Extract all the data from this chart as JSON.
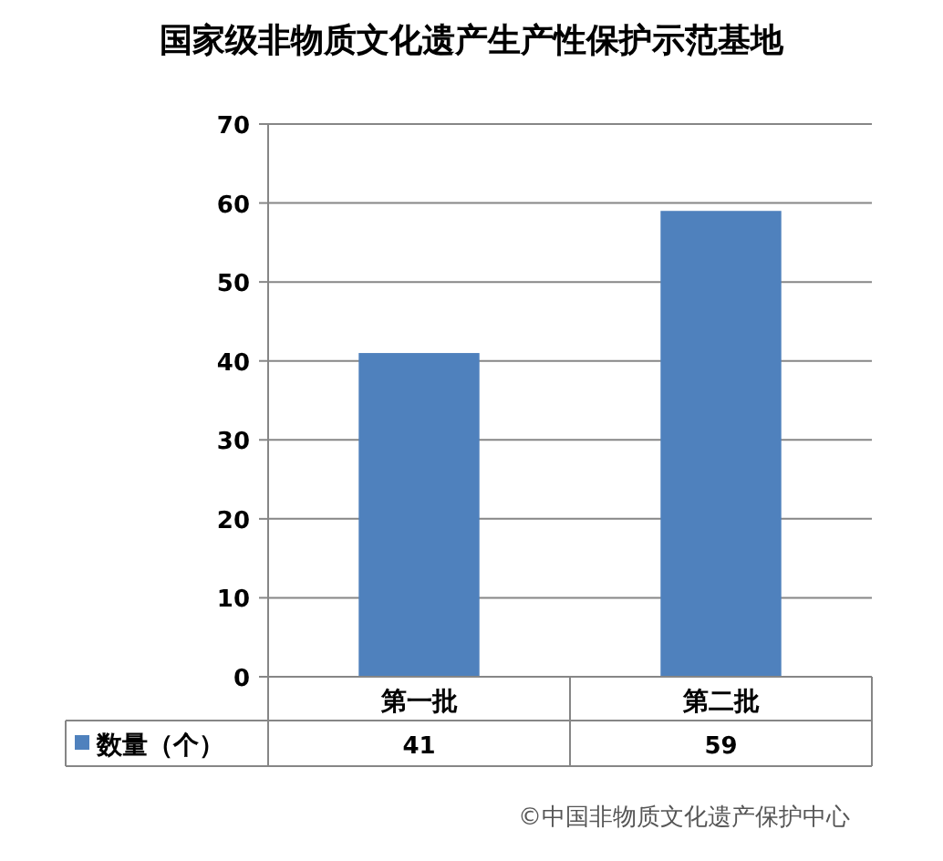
{
  "chart_data": {
    "type": "bar",
    "title": "国家级非物质文化遗产生产性保护示范基地",
    "categories": [
      "第一批",
      "第二批"
    ],
    "series": [
      {
        "name": "数量（个）",
        "color": "#4f81bd",
        "values": [
          41,
          59
        ]
      }
    ],
    "ylim": [
      0,
      70
    ],
    "yticks": [
      0,
      10,
      20,
      30,
      40,
      50,
      60,
      70
    ],
    "grid": "y",
    "legend": "bottom",
    "data_labels": true,
    "annotations": [
      "©中国非物质文化遗产保护中心"
    ]
  }
}
